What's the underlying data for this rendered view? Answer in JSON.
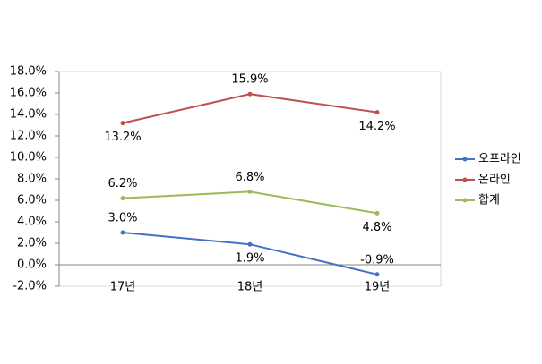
{
  "chart_data": {
    "type": "line",
    "categories": [
      "17년",
      "18년",
      "19년"
    ],
    "series": [
      {
        "name": "오프라인",
        "color": "#4472c4",
        "values": [
          3.0,
          1.9,
          -0.9
        ],
        "value_labels": [
          "3.0%",
          "1.9%",
          "-0.9%"
        ]
      },
      {
        "name": "온라인",
        "color": "#c0504d",
        "values": [
          13.2,
          15.9,
          14.2
        ],
        "value_labels": [
          "13.2%",
          "15.9%",
          "14.2%"
        ]
      },
      {
        "name": "합계",
        "color": "#9bbb59",
        "values": [
          6.2,
          6.8,
          4.8
        ],
        "value_labels": [
          "6.2%",
          "6.8%",
          "4.8%"
        ]
      }
    ],
    "ylim": [
      -2,
      18
    ],
    "yticks": [
      {
        "value": -2,
        "label": "-2.0%"
      },
      {
        "value": 0,
        "label": "0.0%"
      },
      {
        "value": 2,
        "label": "2.0%"
      },
      {
        "value": 4,
        "label": "4.0%"
      },
      {
        "value": 6,
        "label": "6.0%"
      },
      {
        "value": 8,
        "label": "8.0%"
      },
      {
        "value": 10,
        "label": "10.0%"
      },
      {
        "value": 12,
        "label": "12.0%"
      },
      {
        "value": 14,
        "label": "14.0%"
      },
      {
        "value": 16,
        "label": "16.0%"
      },
      {
        "value": 18,
        "label": "18.0%"
      }
    ],
    "legend": "right"
  }
}
